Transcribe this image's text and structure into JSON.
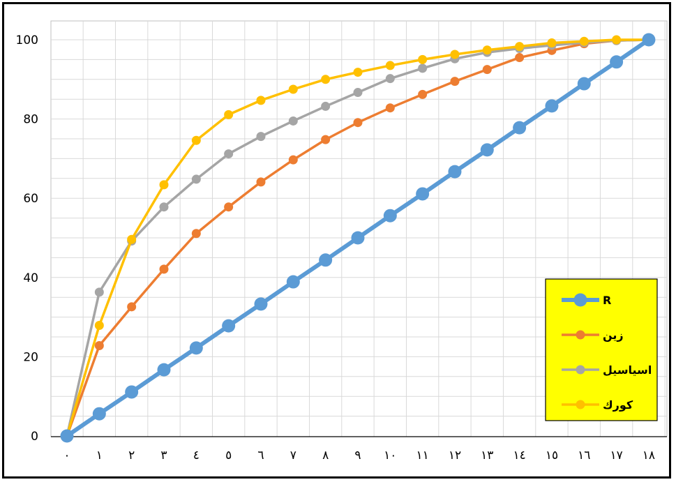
{
  "chart_data": {
    "type": "line",
    "title": "",
    "xlabel": "",
    "ylabel": "",
    "x": [
      0,
      1,
      2,
      3,
      4,
      5,
      6,
      7,
      8,
      9,
      10,
      11,
      12,
      13,
      14,
      15,
      16,
      17,
      18
    ],
    "x_tick_labels": [
      "٠",
      "١",
      "٢",
      "٣",
      "٤",
      "٥",
      "٦",
      "٧",
      "٨",
      "٩",
      "١٠",
      "١١",
      "١٢",
      "١٣",
      "١٤",
      "١٥",
      "١٦",
      "١٧",
      "١٨"
    ],
    "y_tick_labels": [
      "0",
      "20",
      "40",
      "60",
      "80",
      "100"
    ],
    "ylim": [
      0,
      100
    ],
    "grid": true,
    "legend_position": "bottom-right",
    "legend_background": "#ffff00",
    "series": [
      {
        "name": "R",
        "color": "#5b9bd5",
        "values": [
          0,
          5.6,
          11.1,
          16.7,
          22.2,
          27.8,
          33.3,
          38.9,
          44.4,
          50,
          55.6,
          61.1,
          66.7,
          72.2,
          77.8,
          83.3,
          88.9,
          94.4,
          100
        ]
      },
      {
        "name": "زين",
        "color": "#ed7d31",
        "values": [
          0,
          22.8,
          32.6,
          42.1,
          51.1,
          57.8,
          64.1,
          69.7,
          74.8,
          79.1,
          82.8,
          86.2,
          89.5,
          92.5,
          95.5,
          97.3,
          99,
          99.8,
          100
        ]
      },
      {
        "name": "اسياسيل",
        "color": "#a5a5a5",
        "values": [
          0,
          36.3,
          49.2,
          57.8,
          64.8,
          71.2,
          75.6,
          79.5,
          83.2,
          86.7,
          90.2,
          92.8,
          95.2,
          96.8,
          97.8,
          98.6,
          99.3,
          99.8,
          100
        ]
      },
      {
        "name": "كورك",
        "color": "#ffc000",
        "values": [
          0,
          27.9,
          49.6,
          63.4,
          74.6,
          81.1,
          84.7,
          87.5,
          90,
          91.8,
          93.5,
          95,
          96.3,
          97.4,
          98.3,
          99.2,
          99.6,
          100,
          100
        ]
      }
    ]
  }
}
